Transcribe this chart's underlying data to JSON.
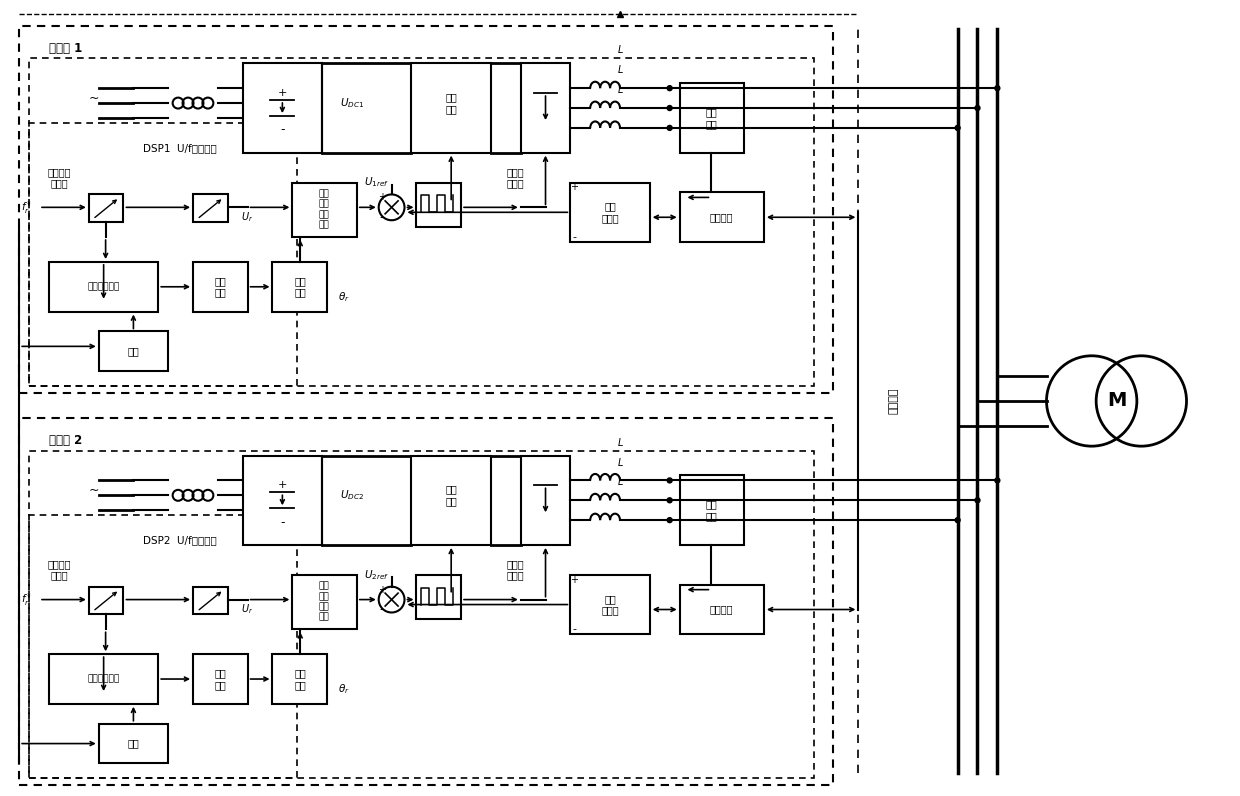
{
  "fig_width": 12.4,
  "fig_height": 7.96,
  "bg_color": "#ffffff",
  "converter1_label": "变频器 1",
  "converter2_label": "变频器 2",
  "dsp1_label": "DSP1  U/f模式生成",
  "dsp2_label": "DSP2  U/f模式生成",
  "slope_gen_label": "斜坡函数\n发生器",
  "sync_gen_label": "同步信号生成",
  "sync_ctrl_label": "同步\n控制",
  "phase_calc_label": "相角\n计算",
  "sine_gen_label": "正弦\n基准\n信号\n生成",
  "sine_pwm_label": "正弦脉\n宽调制",
  "drive_circuit_label": "驱动\n电路",
  "current_detect_label": "电流\n检测",
  "circ_regulator_label": "环流\n调节器",
  "avg_circuit_label": "平均电路",
  "dc_bus_label": "均流总线",
  "wire_label": "线路",
  "motor_label": "M"
}
